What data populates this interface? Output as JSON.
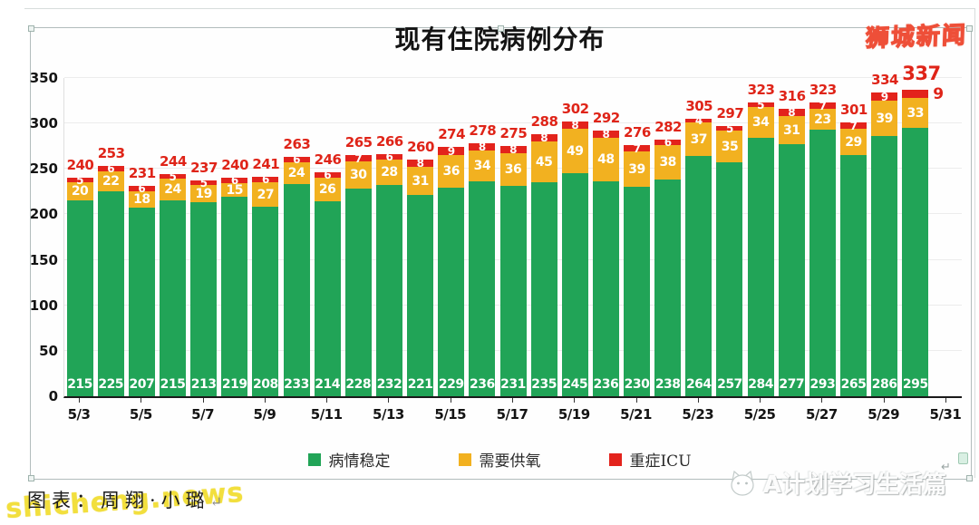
{
  "window": {
    "logo": "狮城新闻",
    "credit": "图表：周翔·小璐",
    "return_mark": "↵",
    "watermark_left": "shicheng.news",
    "watermark_right": "A计划学习生活篇"
  },
  "chart_data": {
    "type": "bar",
    "stacked": true,
    "title": "现有住院病例分布",
    "categories": [
      "5/3",
      "5/4",
      "5/5",
      "5/6",
      "5/7",
      "5/8",
      "5/9",
      "5/10",
      "5/11",
      "5/12",
      "5/13",
      "5/14",
      "5/15",
      "5/16",
      "5/17",
      "5/18",
      "5/19",
      "5/20",
      "5/21",
      "5/22",
      "5/23",
      "5/24",
      "5/25",
      "5/26",
      "5/27",
      "5/28",
      "5/29",
      "5/30"
    ],
    "x_tick_labels": [
      "5/3",
      "5/5",
      "5/7",
      "5/9",
      "5/11",
      "5/13",
      "5/15",
      "5/17",
      "5/19",
      "5/21",
      "5/23",
      "5/25",
      "5/27",
      "5/29",
      "5/31"
    ],
    "series": [
      {
        "name": "病情稳定",
        "color": "#21A457",
        "values": [
          215,
          225,
          207,
          215,
          213,
          219,
          208,
          233,
          214,
          228,
          232,
          221,
          229,
          236,
          231,
          235,
          245,
          236,
          230,
          238,
          264,
          257,
          284,
          277,
          293,
          265,
          286,
          295
        ]
      },
      {
        "name": "需要供氧",
        "color": "#F2B120",
        "values": [
          20,
          22,
          18,
          24,
          19,
          15,
          27,
          24,
          26,
          30,
          28,
          31,
          36,
          34,
          36,
          45,
          49,
          48,
          39,
          38,
          37,
          35,
          34,
          31,
          23,
          29,
          39,
          33
        ]
      },
      {
        "name": "重症ICU",
        "color": "#E3231C",
        "values": [
          5,
          6,
          6,
          5,
          5,
          6,
          6,
          6,
          6,
          7,
          6,
          8,
          9,
          8,
          8,
          8,
          8,
          8,
          7,
          6,
          4,
          5,
          5,
          8,
          7,
          7,
          9,
          9
        ]
      }
    ],
    "totals": [
      240,
      253,
      231,
      244,
      237,
      240,
      241,
      263,
      246,
      265,
      266,
      260,
      274,
      278,
      275,
      288,
      302,
      292,
      276,
      282,
      305,
      297,
      323,
      316,
      323,
      301,
      334,
      337
    ],
    "total_label_color": "#df2418",
    "ylim": [
      0,
      350
    ],
    "yticks": [
      0,
      50,
      100,
      150,
      200,
      250,
      300,
      350
    ],
    "grid": true,
    "legend_position": "bottom",
    "highlight_last_total": true
  }
}
